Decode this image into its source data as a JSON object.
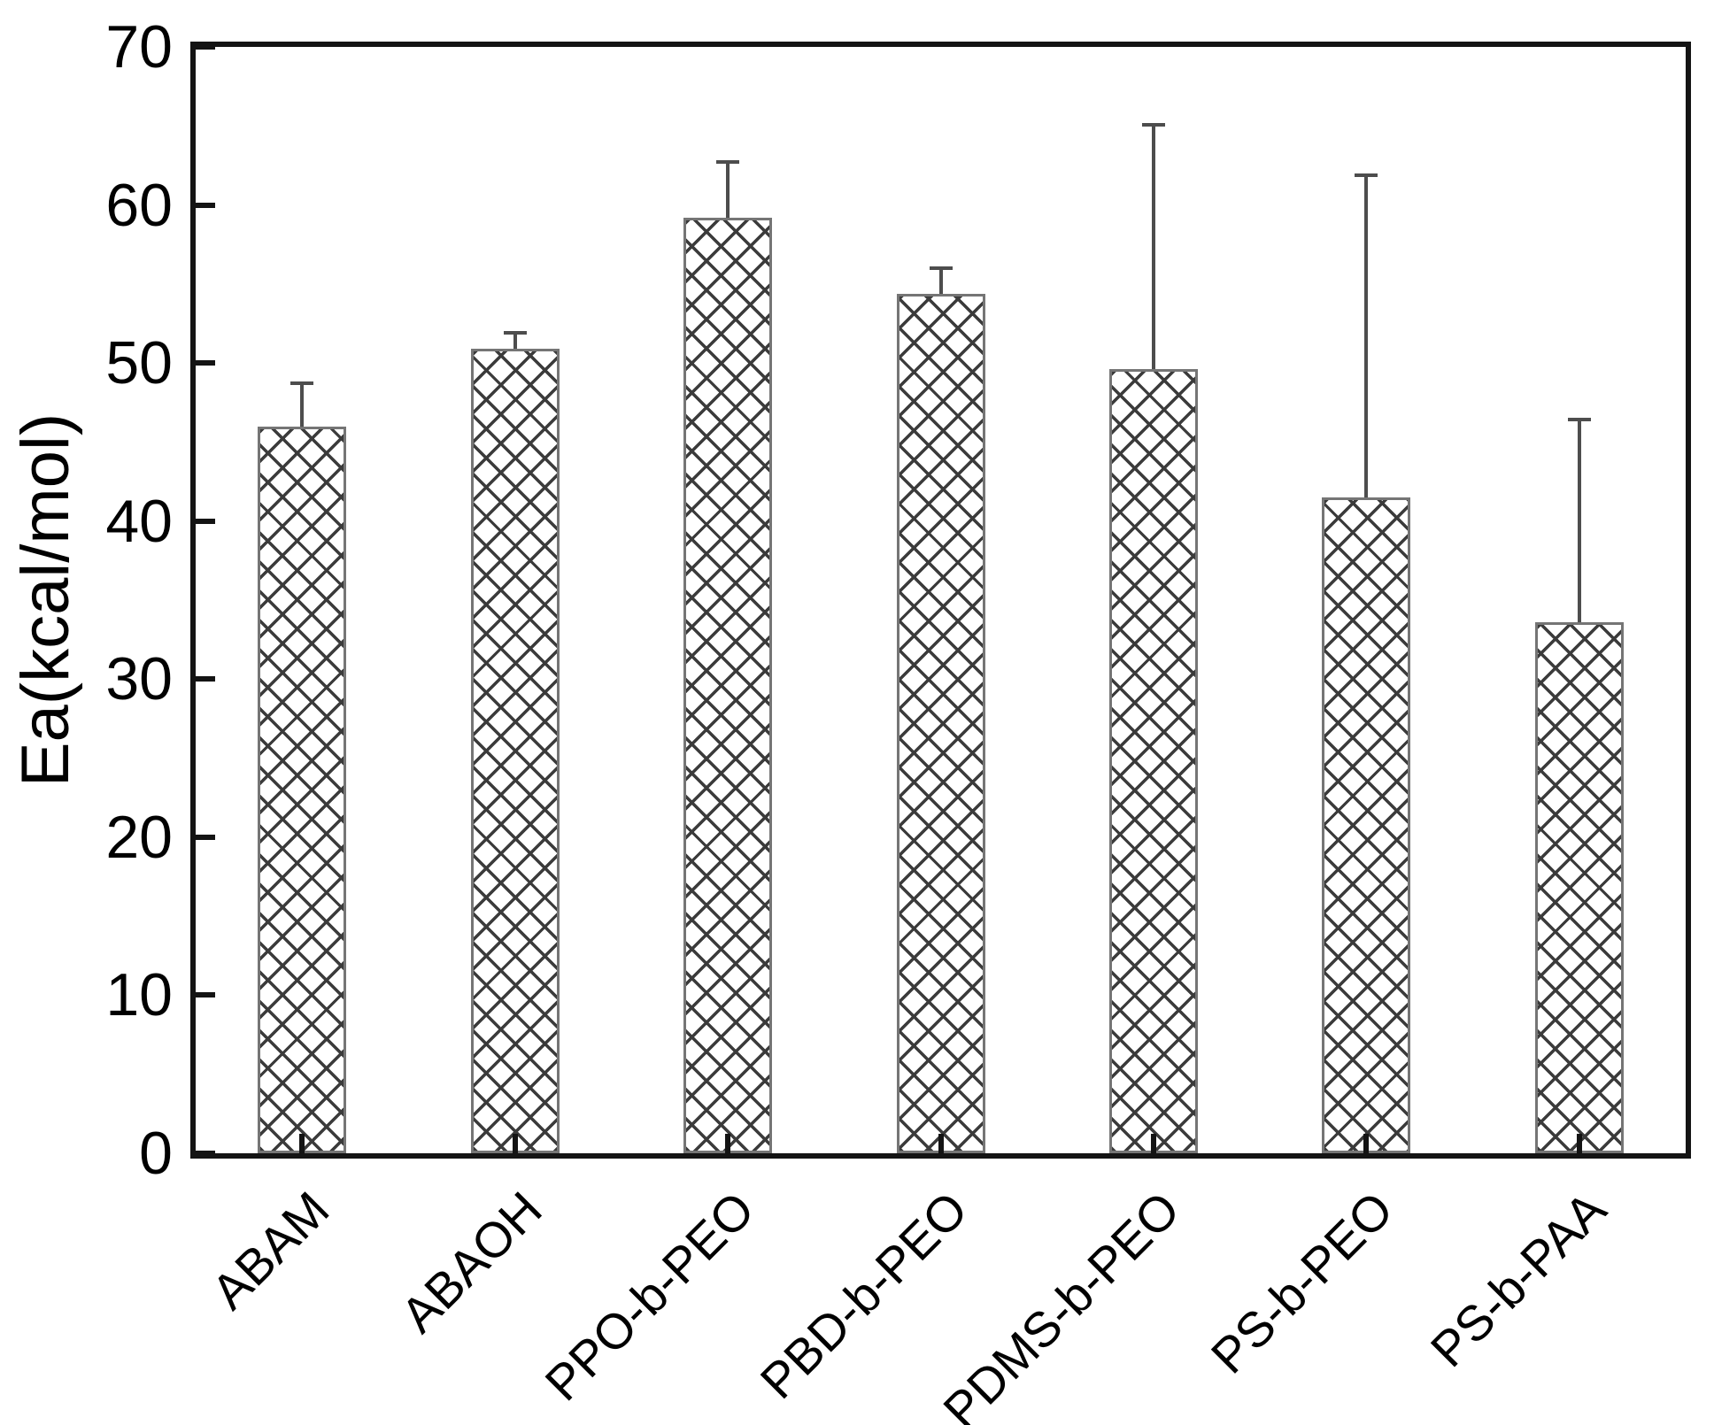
{
  "chart_data": {
    "type": "bar",
    "title": "",
    "xlabel": "",
    "ylabel": "Ea(kcal/mol)",
    "categories": [
      "ABAM",
      "ABAOH",
      "PPO-b-PEO",
      "PBD-b-PEO",
      "PDMS-b-PEO",
      "PS-b-PEO",
      "PS-b-PAA"
    ],
    "values": [
      46.0,
      50.9,
      59.2,
      54.4,
      49.6,
      41.5,
      33.6
    ],
    "errors_upper": [
      2.7,
      1.0,
      3.5,
      1.6,
      15.5,
      20.4,
      12.8
    ],
    "ylim": [
      0,
      70
    ],
    "yticks": [
      0,
      10,
      20,
      30,
      40,
      50,
      60,
      70
    ],
    "grid": false,
    "legend": null,
    "bar_fill": "#ffffff",
    "bar_hatch": "xx",
    "hatch_color": "#3b3b3b",
    "bar_edge_color": "#757575",
    "error_bar_color": "#4d4d4d",
    "axis_color": "#141414",
    "text_color": "#000000"
  }
}
